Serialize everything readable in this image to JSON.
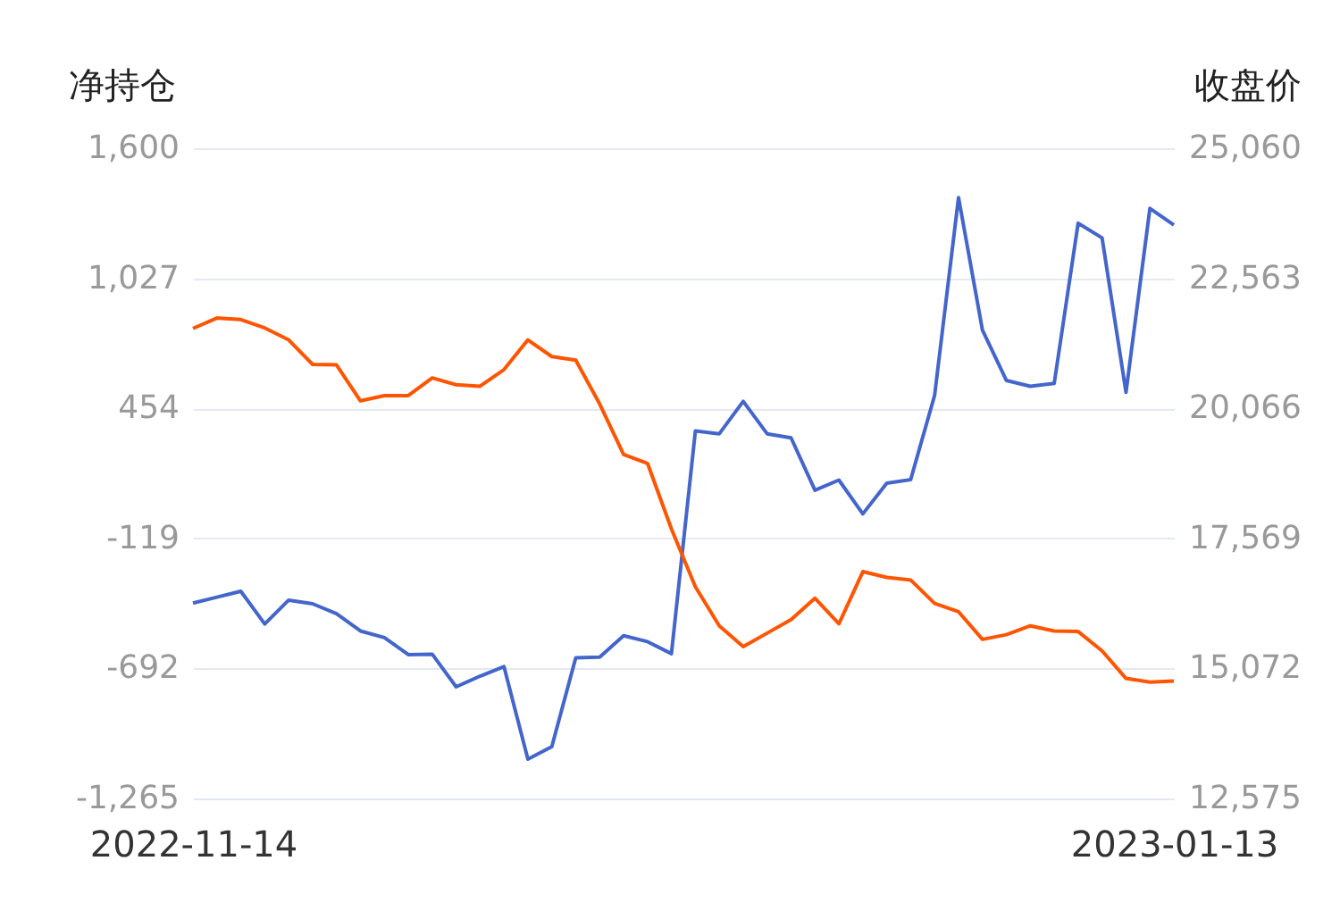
{
  "chart_data": {
    "type": "line",
    "ylabel": "净持仓",
    "y2label": "收盘价",
    "categories": [
      "2022-11-14",
      null,
      null,
      null,
      null,
      null,
      null,
      null,
      null,
      null,
      null,
      null,
      null,
      null,
      null,
      null,
      null,
      null,
      null,
      null,
      null,
      null,
      null,
      null,
      null,
      null,
      null,
      null,
      null,
      null,
      null,
      null,
      null,
      null,
      null,
      null,
      null,
      null,
      null,
      null,
      null,
      "2023-01-13"
    ],
    "series": [
      {
        "color": "#4466cc",
        "values": [
          -404,
          -378,
          -352,
          -496,
          -391,
          -407,
          -451,
          -527,
          -556,
          -631,
          -629,
          -773,
          -726,
          -684,
          -1092,
          -1037,
          -645,
          -642,
          -548,
          -574,
          -627,
          354,
          342,
          485,
          342,
          324,
          93,
          138,
          -11,
          124,
          140,
          511,
          1383,
          799,
          577,
          551,
          564,
          1270,
          1205,
          525,
          1335,
          1262
        ]
      },
      {
        "color": "#ff5500",
        "axis": "y2",
        "values": [
          21600,
          21800,
          21770,
          21610,
          21380,
          20910,
          20900,
          20210,
          20310,
          20310,
          20650,
          20520,
          20490,
          20810,
          21380,
          21060,
          20990,
          20150,
          19180,
          19010,
          17750,
          16640,
          15890,
          15490,
          15750,
          16010,
          16420,
          15930,
          16930,
          16820,
          16770,
          16320,
          16160,
          15630,
          15720,
          15890,
          15790,
          15780,
          15410,
          14880,
          14810,
          14830
        ]
      }
    ],
    "ylim": [
      -1265,
      1600
    ],
    "yticks": [
      {
        "value": -1265,
        "label": "-1,265"
      },
      {
        "value": -692,
        "label": "-692"
      },
      {
        "value": -119,
        "label": "-119"
      },
      {
        "value": 454,
        "label": "454"
      },
      {
        "value": 1027,
        "label": "1,027"
      },
      {
        "value": 1600,
        "label": "1,600"
      }
    ],
    "y2lim": [
      12575,
      25060
    ],
    "y2ticks": [
      {
        "value": 12575,
        "label": "12,575"
      },
      {
        "value": 15072,
        "label": "15,072"
      },
      {
        "value": 17569,
        "label": "17,569"
      },
      {
        "value": 20066,
        "label": "20,066"
      },
      {
        "value": 22563,
        "label": "22,563"
      },
      {
        "value": 25060,
        "label": "25,060"
      }
    ],
    "grid": "y"
  }
}
